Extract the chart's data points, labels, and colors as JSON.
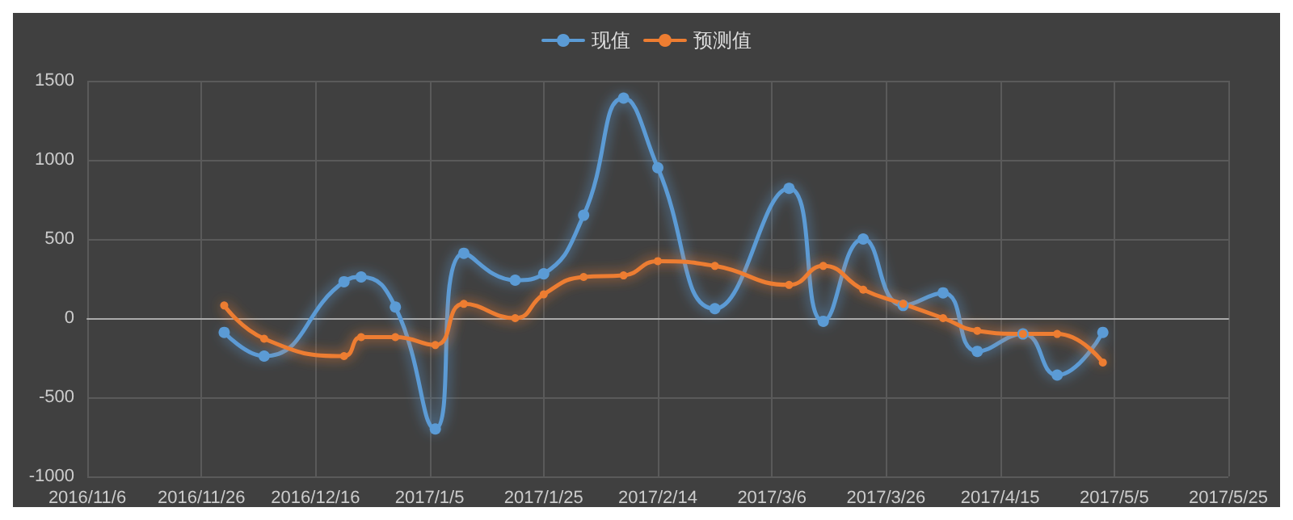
{
  "chart_data": {
    "type": "line",
    "x": [
      "2016-11-30",
      "2016-12-07",
      "2016-12-21",
      "2016-12-24",
      "2016-12-30",
      "2017-01-06",
      "2017-01-11",
      "2017-01-20",
      "2017-01-25",
      "2017-02-01",
      "2017-02-08",
      "2017-02-14",
      "2017-02-24",
      "2017-03-09",
      "2017-03-15",
      "2017-03-22",
      "2017-03-29",
      "2017-04-05",
      "2017-04-11",
      "2017-04-19",
      "2017-04-25",
      "2017-05-03"
    ],
    "series": [
      {
        "name": "现值",
        "color": "#5b9bd5",
        "values": [
          -90,
          -240,
          230,
          260,
          70,
          -700,
          410,
          240,
          280,
          650,
          1390,
          950,
          60,
          820,
          -20,
          500,
          80,
          160,
          -210,
          -100,
          -360,
          -90
        ]
      },
      {
        "name": "预测值",
        "color": "#ed7d31",
        "values": [
          80,
          -130,
          -240,
          -120,
          -120,
          -170,
          90,
          0,
          150,
          260,
          270,
          360,
          330,
          210,
          330,
          180,
          90,
          0,
          -80,
          -100,
          -100,
          -280
        ]
      }
    ],
    "xlim": [
      "2016-11-06",
      "2017-05-25"
    ],
    "xticks": [
      {
        "value": "2016-11-06",
        "label": "2016/11/6"
      },
      {
        "value": "2016-11-26",
        "label": "2016/11/26"
      },
      {
        "value": "2016-12-16",
        "label": "2016/12/16"
      },
      {
        "value": "2017-01-05",
        "label": "2017/1/5"
      },
      {
        "value": "2017-01-25",
        "label": "2017/1/25"
      },
      {
        "value": "2017-02-14",
        "label": "2017/2/14"
      },
      {
        "value": "2017-03-06",
        "label": "2017/3/6"
      },
      {
        "value": "2017-03-26",
        "label": "2017/3/26"
      },
      {
        "value": "2017-04-15",
        "label": "2017/4/15"
      },
      {
        "value": "2017-05-05",
        "label": "2017/5/5"
      },
      {
        "value": "2017-05-25",
        "label": "2017/5/25"
      }
    ],
    "ylim": [
      -1000,
      1500
    ],
    "yticks": [
      -1000,
      -500,
      0,
      500,
      1000,
      1500
    ],
    "grid": true,
    "legend": "top",
    "marker": "circle",
    "line_style": "solid"
  }
}
